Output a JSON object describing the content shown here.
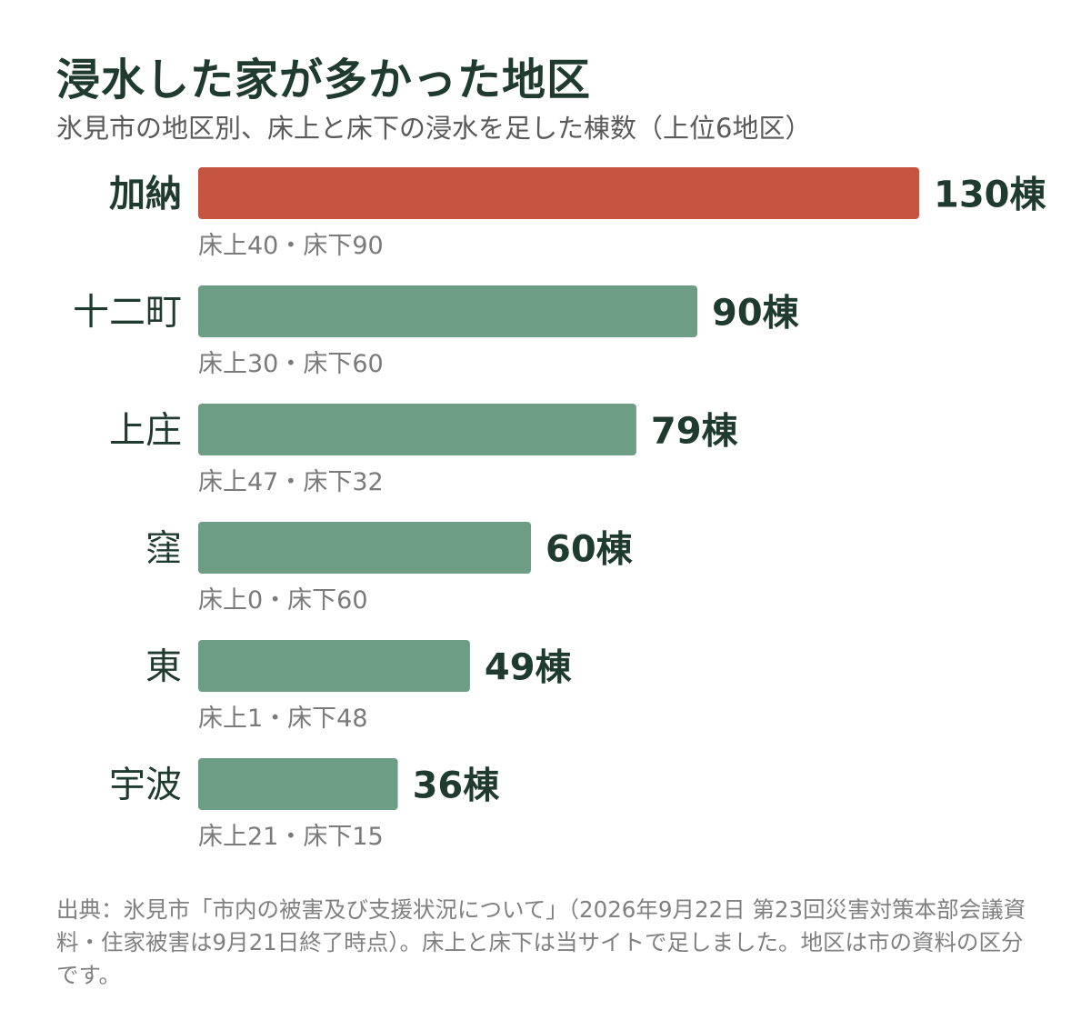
{
  "title": "浸水した家が多かった地区",
  "subtitle": "氷見市の地区別、床上と床下の浸水を足した棟数（上位6地区）",
  "source": "出典：氷見市「市内の被害及び支援状況について」（2026年9月22日 第23回災害対策本部会議資料・住家被害は9月21日終了時点）。床上と床下は当サイトで足しました。地区は市の資料の区分です。",
  "colors": {
    "highlight": "#c55541",
    "bar": "#6d9e85",
    "label_text": "#1f3a2f",
    "sub_text": "#7a7a7a"
  },
  "chart_data": {
    "type": "bar",
    "orientation": "horizontal",
    "unit": "棟",
    "categories": [
      "加納",
      "十二町",
      "上庄",
      "窪",
      "東",
      "宇波"
    ],
    "values": [
      130,
      90,
      79,
      60,
      49,
      36
    ],
    "value_labels": [
      "130棟",
      "90棟",
      "79棟",
      "60棟",
      "49棟",
      "36棟"
    ],
    "breakdown_labels": [
      "床上40・床下90",
      "床上30・床下60",
      "床上47・床下32",
      "床上0・床下60",
      "床上1・床下48",
      "床上21・床下15"
    ],
    "series": [
      {
        "values": [
          40,
          30,
          47,
          0,
          1,
          21
        ]
      },
      {
        "values": [
          90,
          60,
          32,
          60,
          48,
          15
        ]
      }
    ],
    "highlight_index": 0,
    "grid": false,
    "legend": "none"
  }
}
